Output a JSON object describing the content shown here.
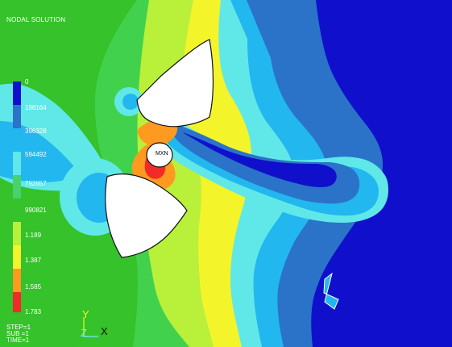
{
  "plot": {
    "title": "NODAL SOLUTION",
    "legend": {
      "labels": [
        "0",
        "198164",
        "396328",
        "594492",
        "792657",
        "990821",
        "1.189",
        "1.387",
        "1.585",
        "1.783"
      ],
      "colors": [
        "#1010cc",
        "#2a73c9",
        "#22b7ef",
        "#60e8e8",
        "#47d26e",
        "#35c22a",
        "#b8f03a",
        "#f4f42a",
        "#ff9a20",
        "#f22a2a"
      ]
    },
    "status_lines": [
      "STEP=1",
      "SUB =1",
      "TIME=1"
    ],
    "axis_labels": {
      "y": "Y",
      "z": "Z",
      "x": "X"
    },
    "node_label": "MXN"
  }
}
